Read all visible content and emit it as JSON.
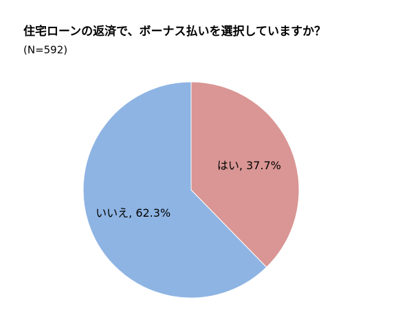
{
  "chart_data": {
    "type": "pie",
    "title": "住宅ローンの返済で、ボーナス払いを選択していますか？",
    "subtitle": "(N=592)",
    "values": [
      37.7,
      62.3
    ],
    "value_labels": [
      "はい, 37.7%",
      "いいえ, 62.3%"
    ],
    "colors": [
      "#d99694",
      "#8eb4e3"
    ]
  }
}
